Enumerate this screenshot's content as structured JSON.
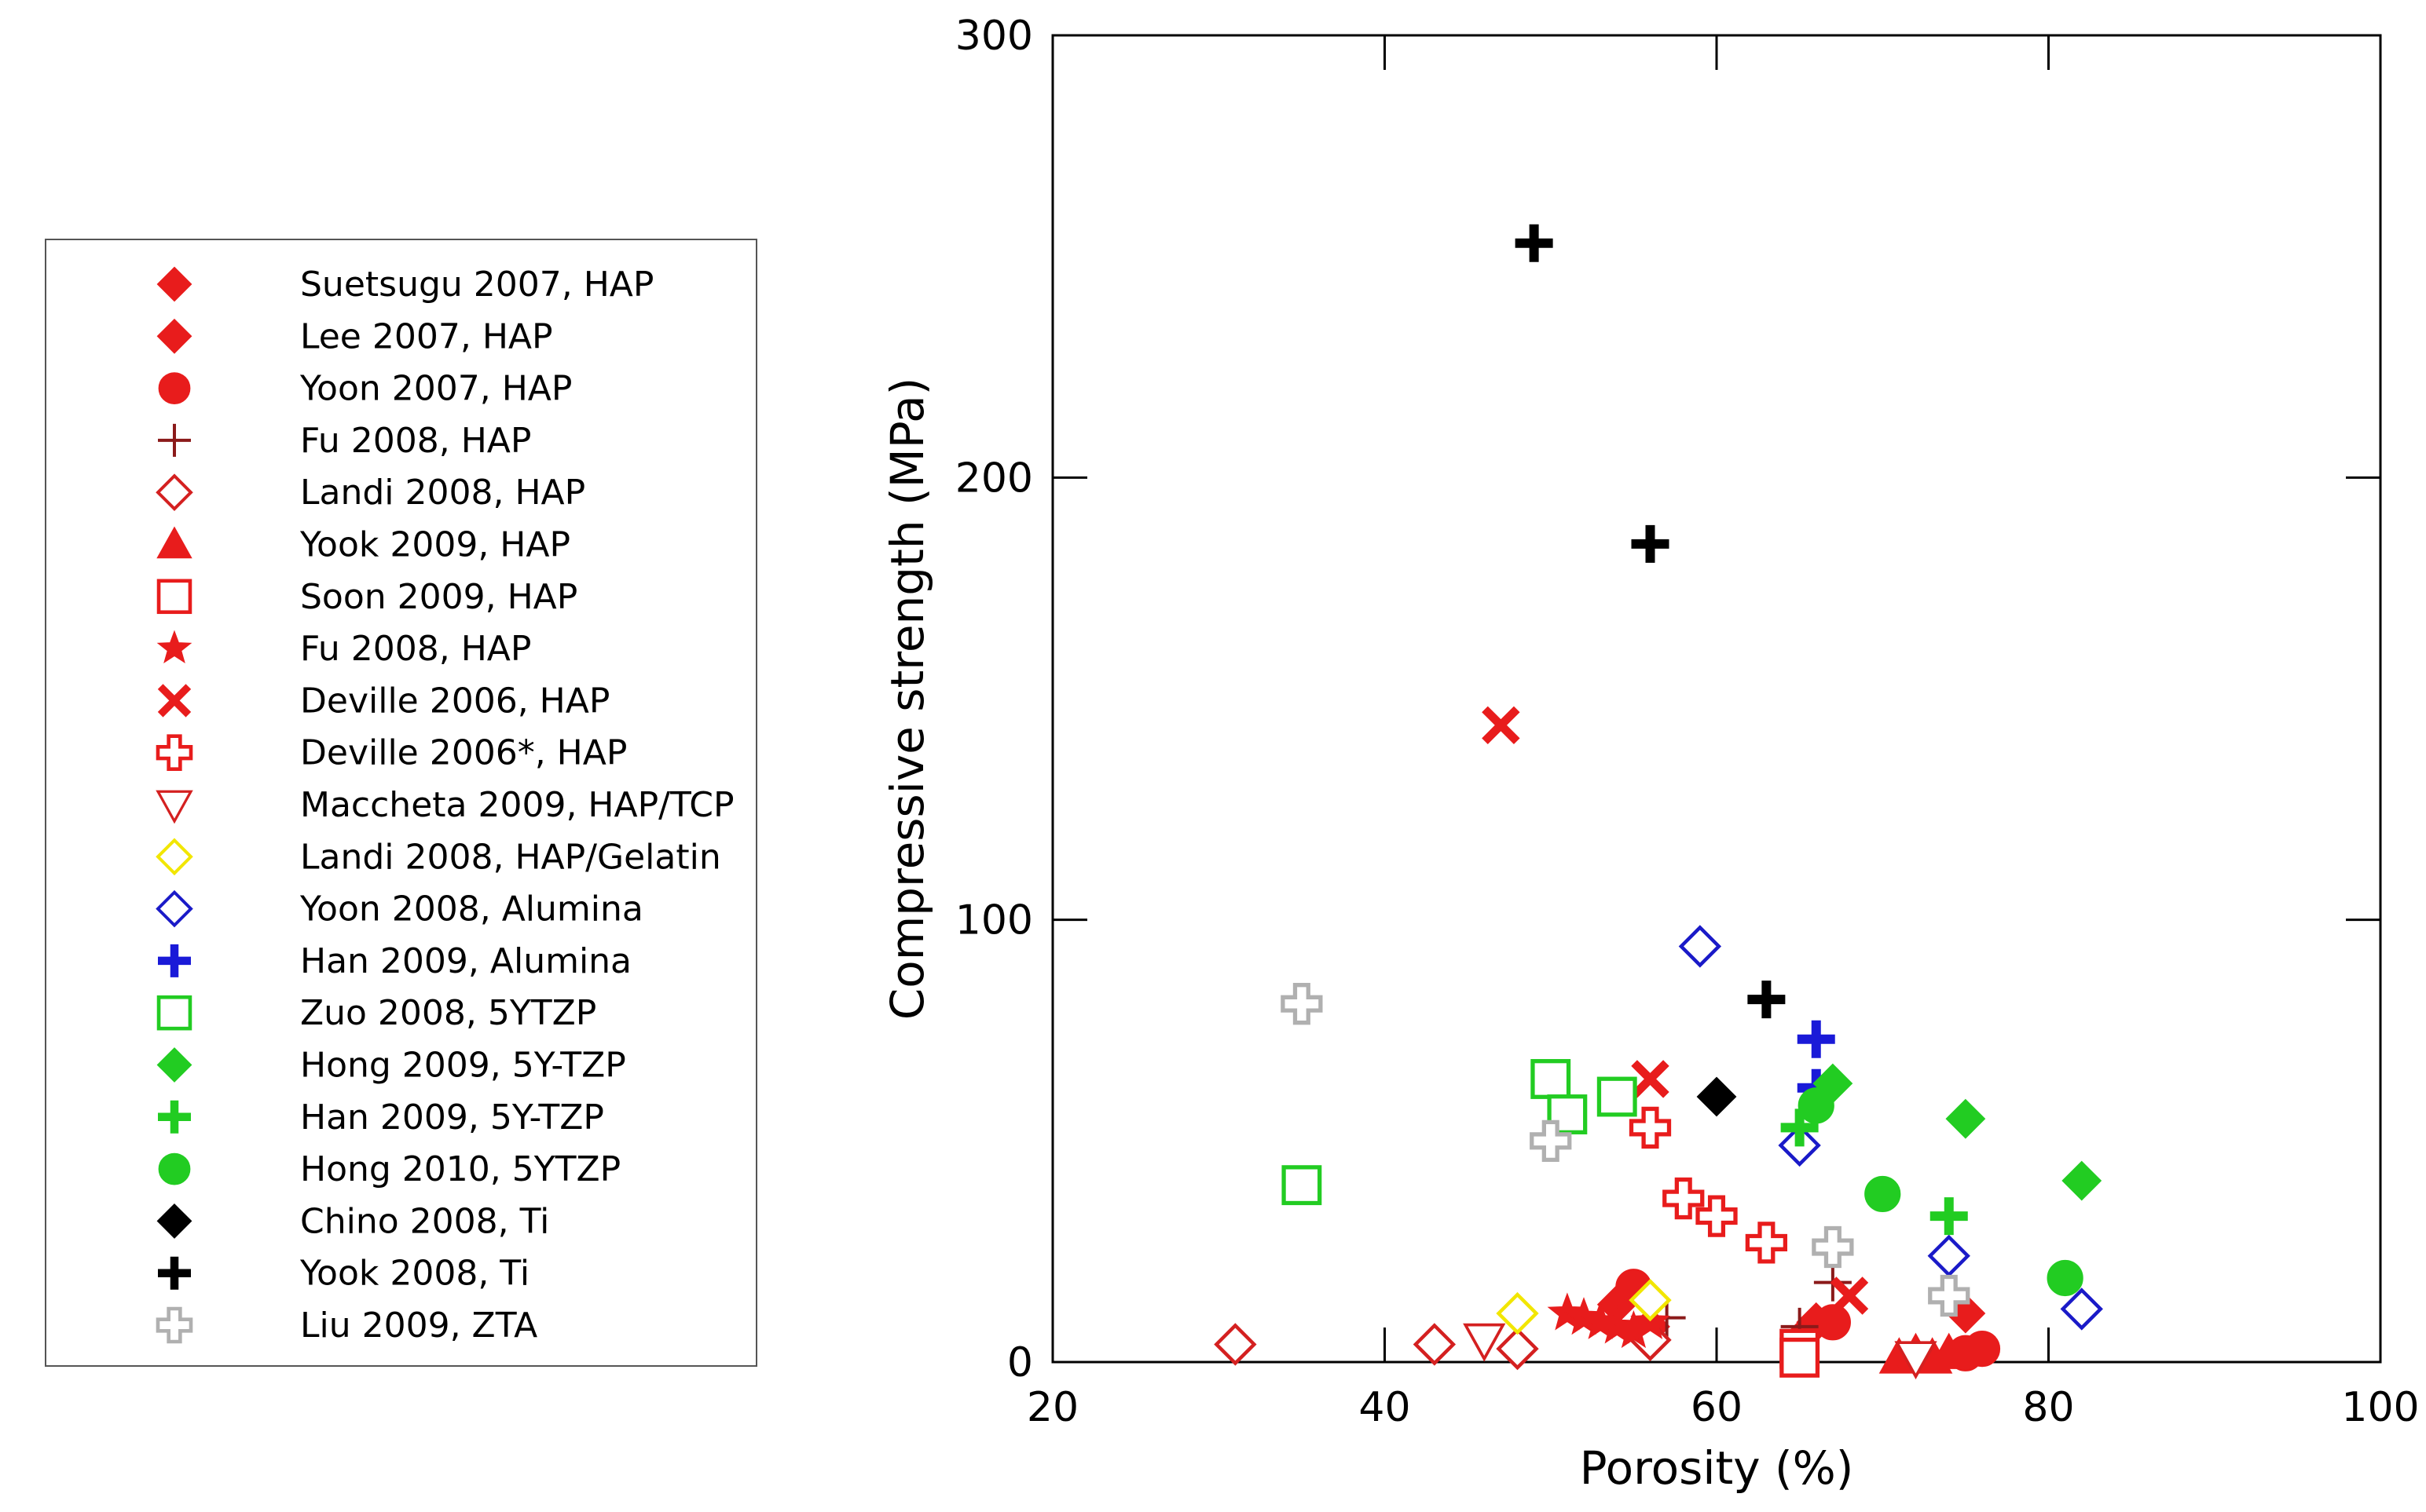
{
  "chart_data": {
    "type": "scatter",
    "xlabel": "Porosity (%)",
    "ylabel": "Compressive strength (MPa)",
    "xlim": [
      20,
      100
    ],
    "ylim": [
      0,
      300
    ],
    "x_ticks": [
      20,
      40,
      60,
      80,
      100
    ],
    "y_ticks": [
      0,
      100,
      200,
      300
    ],
    "legend_position": "left",
    "series": [
      {
        "name": "Suetsugu 2007, HAP",
        "marker": "diamond",
        "fill": "solid",
        "color": "#e81c1c",
        "points": [
          [
            75,
            11
          ],
          [
            65,
            5
          ],
          [
            56,
            8
          ]
        ]
      },
      {
        "name": "Lee 2007, HAP",
        "marker": "diamond",
        "fill": "solid",
        "color": "#e81c1c",
        "points": [
          [
            54,
            13
          ],
          [
            66,
            9
          ]
        ]
      },
      {
        "name": "Yoon 2007, HAP",
        "marker": "circle",
        "fill": "solid",
        "color": "#e81c1c",
        "points": [
          [
            55,
            17
          ],
          [
            67,
            9
          ],
          [
            76,
            3
          ],
          [
            75,
            2
          ]
        ]
      },
      {
        "name": "Fu 2008, HAP",
        "marker": "plus-thin",
        "fill": "line",
        "color": "#8b1a1a",
        "points": [
          [
            67,
            18
          ],
          [
            65,
            8
          ],
          [
            57,
            10
          ]
        ]
      },
      {
        "name": "Landi 2008, HAP",
        "marker": "diamond",
        "fill": "open",
        "color": "#d42020",
        "points": [
          [
            31,
            4
          ],
          [
            43,
            4
          ],
          [
            48,
            3
          ],
          [
            56,
            5
          ]
        ]
      },
      {
        "name": "Yook 2009, HAP",
        "marker": "triangle-up",
        "fill": "solid",
        "color": "#e81c1c",
        "points": [
          [
            71,
            1
          ],
          [
            72,
            2
          ],
          [
            73,
            1
          ],
          [
            74,
            2
          ]
        ]
      },
      {
        "name": "Soon 2009, HAP",
        "marker": "square",
        "fill": "open",
        "color": "#e81c1c",
        "points": [
          [
            65,
            3
          ],
          [
            65,
            1
          ]
        ]
      },
      {
        "name": "Fu 2008, HAP",
        "marker": "star",
        "fill": "solid",
        "color": "#e81c1c",
        "points": [
          [
            51,
            11
          ],
          [
            52,
            10
          ],
          [
            53,
            9
          ],
          [
            54,
            8
          ],
          [
            55,
            7
          ],
          [
            56,
            9
          ]
        ]
      },
      {
        "name": "Deville 2006, HAP",
        "marker": "x",
        "fill": "solid",
        "color": "#e81c1c",
        "points": [
          [
            47,
            144
          ],
          [
            56,
            64
          ],
          [
            68,
            15
          ]
        ]
      },
      {
        "name": "Deville 2006*, HAP",
        "marker": "plus-open",
        "fill": "open",
        "color": "#e81c1c",
        "points": [
          [
            56,
            53
          ],
          [
            58,
            37
          ],
          [
            60,
            33
          ],
          [
            63,
            27
          ]
        ]
      },
      {
        "name": "Maccheta 2009, HAP/TCP",
        "marker": "triangle-down",
        "fill": "open",
        "color": "#d42020",
        "points": [
          [
            46,
            5
          ],
          [
            72,
            1
          ]
        ]
      },
      {
        "name": "Landi 2008, HAP/Gelatin",
        "marker": "diamond",
        "fill": "open",
        "color": "#f2e600",
        "points": [
          [
            48,
            11
          ],
          [
            56,
            14
          ]
        ]
      },
      {
        "name": "Yoon 2008, Alumina",
        "marker": "diamond",
        "fill": "open",
        "color": "#1a1ac8",
        "points": [
          [
            59,
            94
          ],
          [
            65,
            49
          ],
          [
            74,
            24
          ],
          [
            82,
            12
          ]
        ]
      },
      {
        "name": "Han 2009, Alumina",
        "marker": "plus-bold",
        "fill": "solid",
        "color": "#1a1ad8",
        "points": [
          [
            66,
            73
          ],
          [
            66,
            62
          ]
        ]
      },
      {
        "name": "Zuo 2008, 5YTZP",
        "marker": "square",
        "fill": "open",
        "color": "#22cc22",
        "points": [
          [
            35,
            40
          ],
          [
            50,
            64
          ],
          [
            51,
            56
          ],
          [
            54,
            60
          ]
        ]
      },
      {
        "name": "Hong 2009, 5Y-TZP",
        "marker": "diamond",
        "fill": "solid",
        "color": "#22cc22",
        "points": [
          [
            67,
            63
          ],
          [
            75,
            55
          ],
          [
            82,
            41
          ]
        ]
      },
      {
        "name": "Han 2009, 5Y-TZP",
        "marker": "plus-bold",
        "fill": "solid",
        "color": "#22cc22",
        "points": [
          [
            65,
            53
          ],
          [
            74,
            33
          ]
        ]
      },
      {
        "name": "Hong 2010, 5YTZP",
        "marker": "circle",
        "fill": "solid",
        "color": "#22cc22",
        "points": [
          [
            66,
            58
          ],
          [
            70,
            38
          ],
          [
            81,
            19
          ]
        ]
      },
      {
        "name": "Chino 2008, Ti",
        "marker": "diamond",
        "fill": "solid",
        "color": "#000000",
        "points": [
          [
            60,
            60
          ]
        ]
      },
      {
        "name": "Yook 2008, Ti",
        "marker": "plus-bold",
        "fill": "solid",
        "color": "#000000",
        "points": [
          [
            49,
            253
          ],
          [
            56,
            185
          ],
          [
            63,
            82
          ]
        ]
      },
      {
        "name": "Liu 2009, ZTA",
        "marker": "plus-open",
        "fill": "open",
        "color": "#b0b0b0",
        "points": [
          [
            35,
            81
          ],
          [
            50,
            50
          ],
          [
            67,
            26
          ],
          [
            74,
            15
          ]
        ]
      }
    ]
  }
}
